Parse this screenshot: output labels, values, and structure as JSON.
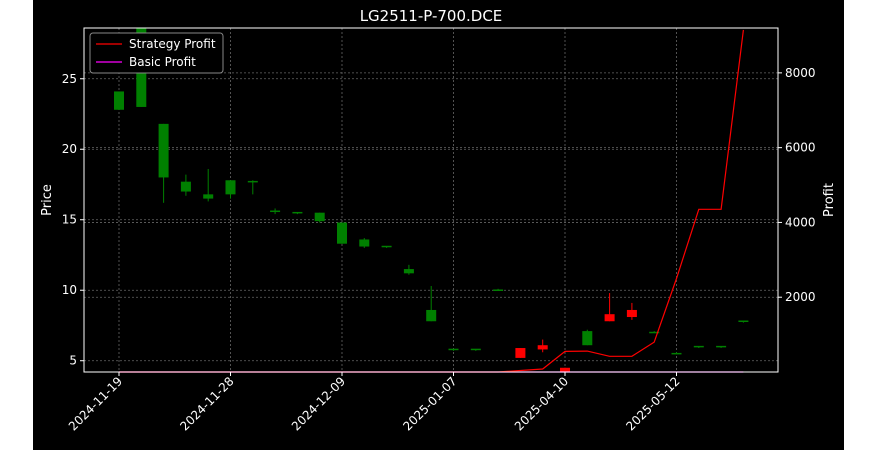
{
  "chart_data": {
    "type": "candlestick+line",
    "title": "LG2511-P-700.DCE",
    "ylabel_left": "Price",
    "ylabel_right": "Profit",
    "ylim_left": [
      4.2,
      28.6
    ],
    "ylim_right": [
      0,
      9200
    ],
    "yticks_left": [
      5,
      10,
      15,
      20,
      25
    ],
    "yticks_right": [
      2000,
      4000,
      6000,
      8000
    ],
    "grid": true,
    "legend_position": "upper-left",
    "colors": {
      "up": "#008000",
      "down": "#ff0000",
      "strategy": "#ff0000",
      "basic": "#ff00ff",
      "background": "#000000"
    },
    "xtick_labels": [
      {
        "index": 0,
        "label": "2024-11-19"
      },
      {
        "index": 5,
        "label": "2024-11-28"
      },
      {
        "index": 10,
        "label": "2024-12-09"
      },
      {
        "index": 15,
        "label": "2025-01-07"
      },
      {
        "index": 20,
        "label": "2025-04-10"
      },
      {
        "index": 25,
        "label": "2025-05-12"
      }
    ],
    "candles": [
      {
        "open": 22.8,
        "high": 24.1,
        "low": 22.8,
        "close": 24.1
      },
      {
        "open": 23.0,
        "high": 28.6,
        "low": 23.0,
        "close": 28.6
      },
      {
        "open": 18.0,
        "high": 21.8,
        "low": 16.2,
        "close": 21.8
      },
      {
        "open": 17.0,
        "high": 18.2,
        "low": 16.7,
        "close": 17.7
      },
      {
        "open": 16.5,
        "high": 18.6,
        "low": 16.3,
        "close": 16.8
      },
      {
        "open": 16.8,
        "high": 17.8,
        "low": 16.5,
        "close": 17.8
      },
      {
        "open": 17.7,
        "high": 17.8,
        "low": 16.8,
        "close": 17.7
      },
      {
        "open": 15.5,
        "high": 15.8,
        "low": 15.4,
        "close": 15.6
      },
      {
        "open": 15.5,
        "high": 15.5,
        "low": 15.4,
        "close": 15.5
      },
      {
        "open": 14.9,
        "high": 15.5,
        "low": 14.8,
        "close": 15.5
      },
      {
        "open": 13.3,
        "high": 14.8,
        "low": 13.3,
        "close": 14.8
      },
      {
        "open": 13.1,
        "high": 13.7,
        "low": 13.0,
        "close": 13.6
      },
      {
        "open": 13.1,
        "high": 13.1,
        "low": 13.0,
        "close": 13.1
      },
      {
        "open": 11.2,
        "high": 11.8,
        "low": 11.1,
        "close": 11.5
      },
      {
        "open": 7.8,
        "high": 10.3,
        "low": 7.8,
        "close": 8.6
      },
      {
        "open": 5.8,
        "high": 5.8,
        "low": 5.7,
        "close": 5.8
      },
      {
        "open": 5.8,
        "high": 5.8,
        "low": 5.7,
        "close": 5.8
      },
      {
        "open": 10.0,
        "high": 10.1,
        "low": 10.0,
        "close": 10.0
      },
      {
        "open": 5.9,
        "high": 5.9,
        "low": 5.2,
        "close": 5.2
      },
      {
        "open": 6.1,
        "high": 6.5,
        "low": 5.6,
        "close": 5.8
      },
      {
        "open": 4.5,
        "high": 4.5,
        "low": 4.2,
        "close": 4.2
      },
      {
        "open": 6.1,
        "high": 7.2,
        "low": 6.1,
        "close": 7.1
      },
      {
        "open": 8.3,
        "high": 9.8,
        "low": 7.8,
        "close": 7.8
      },
      {
        "open": 8.6,
        "high": 9.1,
        "low": 7.9,
        "close": 8.1
      },
      {
        "open": 7.0,
        "high": 7.1,
        "low": 7.0,
        "close": 7.0
      },
      {
        "open": 5.5,
        "high": 5.6,
        "low": 5.5,
        "close": 5.5
      },
      {
        "open": 6.0,
        "high": 6.0,
        "low": 5.9,
        "close": 6.0
      },
      {
        "open": 6.0,
        "high": 6.0,
        "low": 5.9,
        "close": 6.0
      },
      {
        "open": 7.8,
        "high": 7.8,
        "low": 7.7,
        "close": 7.8
      }
    ],
    "series": [
      {
        "name": "Strategy Profit",
        "values": [
          0,
          0,
          0,
          0,
          0,
          0,
          0,
          0,
          0,
          0,
          0,
          0,
          0,
          0,
          0,
          0,
          0,
          0,
          40,
          80,
          550,
          560,
          420,
          420,
          800,
          2500,
          4350,
          4350,
          9150
        ]
      },
      {
        "name": "Basic Profit",
        "values": [
          0,
          0,
          0,
          0,
          0,
          0,
          0,
          0,
          0,
          0,
          0,
          0,
          0,
          0,
          0,
          0,
          0,
          0,
          0,
          0,
          0,
          0,
          0,
          0,
          0,
          0,
          0,
          0,
          0
        ]
      }
    ]
  }
}
